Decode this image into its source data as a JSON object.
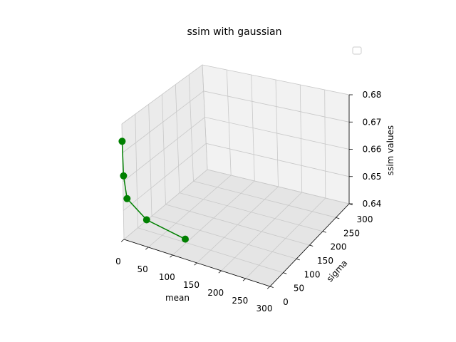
{
  "chart_data": {
    "type": "line",
    "title": "ssim with gaussian",
    "xlabel": "mean",
    "ylabel": "sigma",
    "zlabel": "ssim values",
    "xlim": [
      0,
      300
    ],
    "ylim": [
      0,
      300
    ],
    "zlim": [
      0.64,
      0.68
    ],
    "x_ticks": [
      "0",
      "50",
      "100",
      "150",
      "200",
      "250",
      "300"
    ],
    "y_ticks": [
      "0",
      "50",
      "100",
      "150",
      "200",
      "250",
      "300"
    ],
    "z_ticks": [
      "0.64",
      "0.65",
      "0.66",
      "0.67",
      "0.68"
    ],
    "grid": true,
    "legend": {
      "placement": "top-right",
      "entries": []
    },
    "series": [
      {
        "color": "#008000",
        "marker": "circle",
        "x": [
          0,
          1,
          5,
          30,
          80
        ],
        "y": [
          0,
          1,
          5,
          30,
          80
        ],
        "z": [
          0.674,
          0.662,
          0.654,
          0.646,
          0.638
        ]
      }
    ]
  }
}
